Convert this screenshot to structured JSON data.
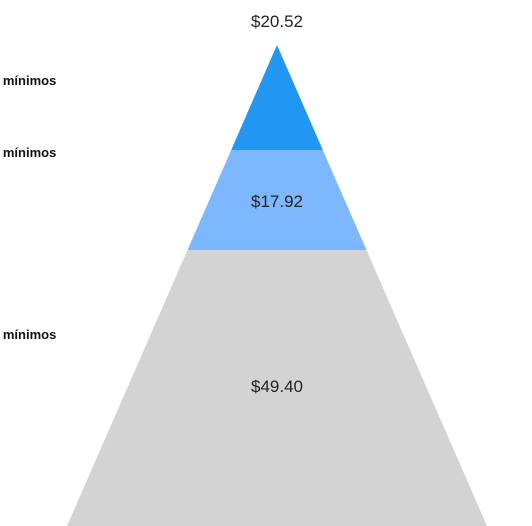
{
  "chart_data": {
    "type": "pyramid",
    "title": "",
    "segments": [
      {
        "label": "s mínimos",
        "value": 20.52,
        "value_label": "$20.52",
        "color": "#2196F3"
      },
      {
        "label": "s mínimos",
        "value": 17.92,
        "value_label": "$17.92",
        "color": "#7DB8FF"
      },
      {
        "label": "s mínimos",
        "value": 49.4,
        "value_label": "$49.40",
        "color": "#D3D3D3"
      }
    ]
  }
}
